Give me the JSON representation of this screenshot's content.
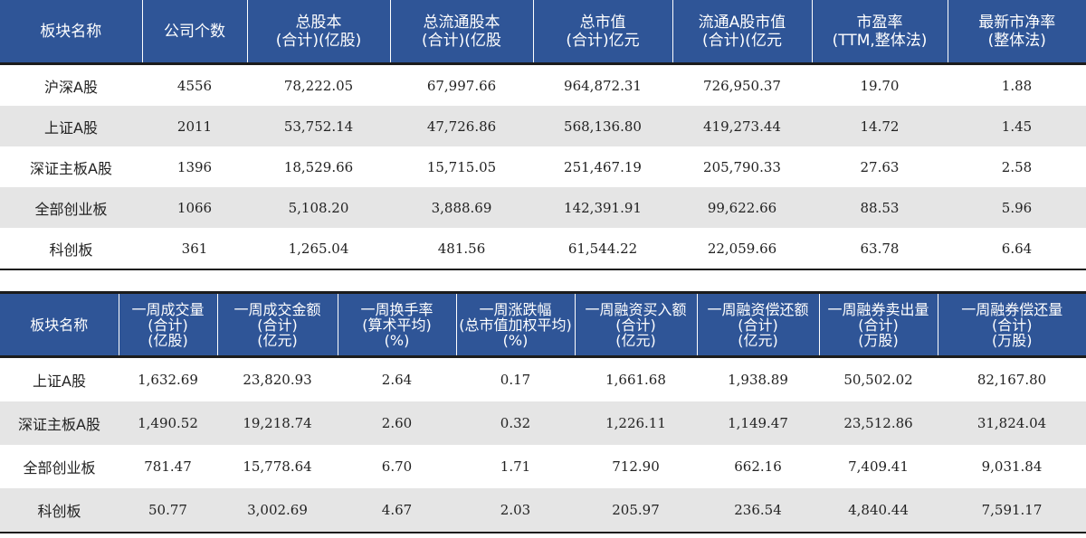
{
  "table1": {
    "headers": [
      [
        "板块名称"
      ],
      [
        "公司个数"
      ],
      [
        "总股本",
        "(合计)(亿股)"
      ],
      [
        "总流通股本",
        "(合计)(亿股"
      ],
      [
        "总市值",
        "(合计)亿元"
      ],
      [
        "流通A股市值",
        "(合计)(亿元"
      ],
      [
        "市盈率",
        "(TTM,整体法)"
      ],
      [
        "最新市净率",
        "(整体法)"
      ]
    ],
    "rows": [
      [
        "沪深A股",
        "4556",
        "78,222.05",
        "67,997.66",
        "964,872.31",
        "726,950.37",
        "19.70",
        "1.88"
      ],
      [
        "上证A股",
        "2011",
        "53,752.14",
        "47,726.86",
        "568,136.80",
        "419,273.44",
        "14.72",
        "1.45"
      ],
      [
        "深证主板A股",
        "1396",
        "18,529.66",
        "15,715.05",
        "251,467.19",
        "205,790.33",
        "27.63",
        "2.58"
      ],
      [
        "全部创业板",
        "1066",
        "5,108.20",
        "3,888.69",
        "142,391.91",
        "99,622.66",
        "88.53",
        "5.96"
      ],
      [
        "科创板",
        "361",
        "1,265.04",
        "481.56",
        "61,544.22",
        "22,059.66",
        "63.78",
        "6.64"
      ]
    ]
  },
  "table2": {
    "headers": [
      [
        "板块名称"
      ],
      [
        "一周成交量",
        "(合计)",
        "(亿股)"
      ],
      [
        "一周成交金额",
        "(合计)",
        "(亿元)"
      ],
      [
        "一周换手率",
        "(算术平均)",
        "(%)"
      ],
      [
        "一周涨跌幅",
        "(总市值加权平均)",
        "(%)"
      ],
      [
        "一周融资买入额",
        "(合计)",
        "(亿元)"
      ],
      [
        "一周融资偿还额",
        "(合计)",
        "(亿元)"
      ],
      [
        "一周融券卖出量",
        "(合计)",
        "(万股)"
      ],
      [
        "一周融券偿还量",
        "(合计)",
        "(万股)"
      ]
    ],
    "rows": [
      [
        "上证A股",
        "1,632.69",
        "23,820.93",
        "2.64",
        "0.17",
        "1,661.68",
        "1,938.89",
        "50,502.02",
        "82,167.80"
      ],
      [
        "深证主板A股",
        "1,490.52",
        "19,218.74",
        "2.60",
        "0.32",
        "1,226.11",
        "1,149.47",
        "23,512.86",
        "31,824.04"
      ],
      [
        "全部创业板",
        "781.47",
        "15,778.64",
        "6.70",
        "1.71",
        "712.90",
        "662.16",
        "7,409.41",
        "9,031.84"
      ],
      [
        "科创板",
        "50.77",
        "3,002.69",
        "4.67",
        "2.03",
        "205.97",
        "236.54",
        "4,840.44",
        "7,591.17"
      ]
    ]
  }
}
